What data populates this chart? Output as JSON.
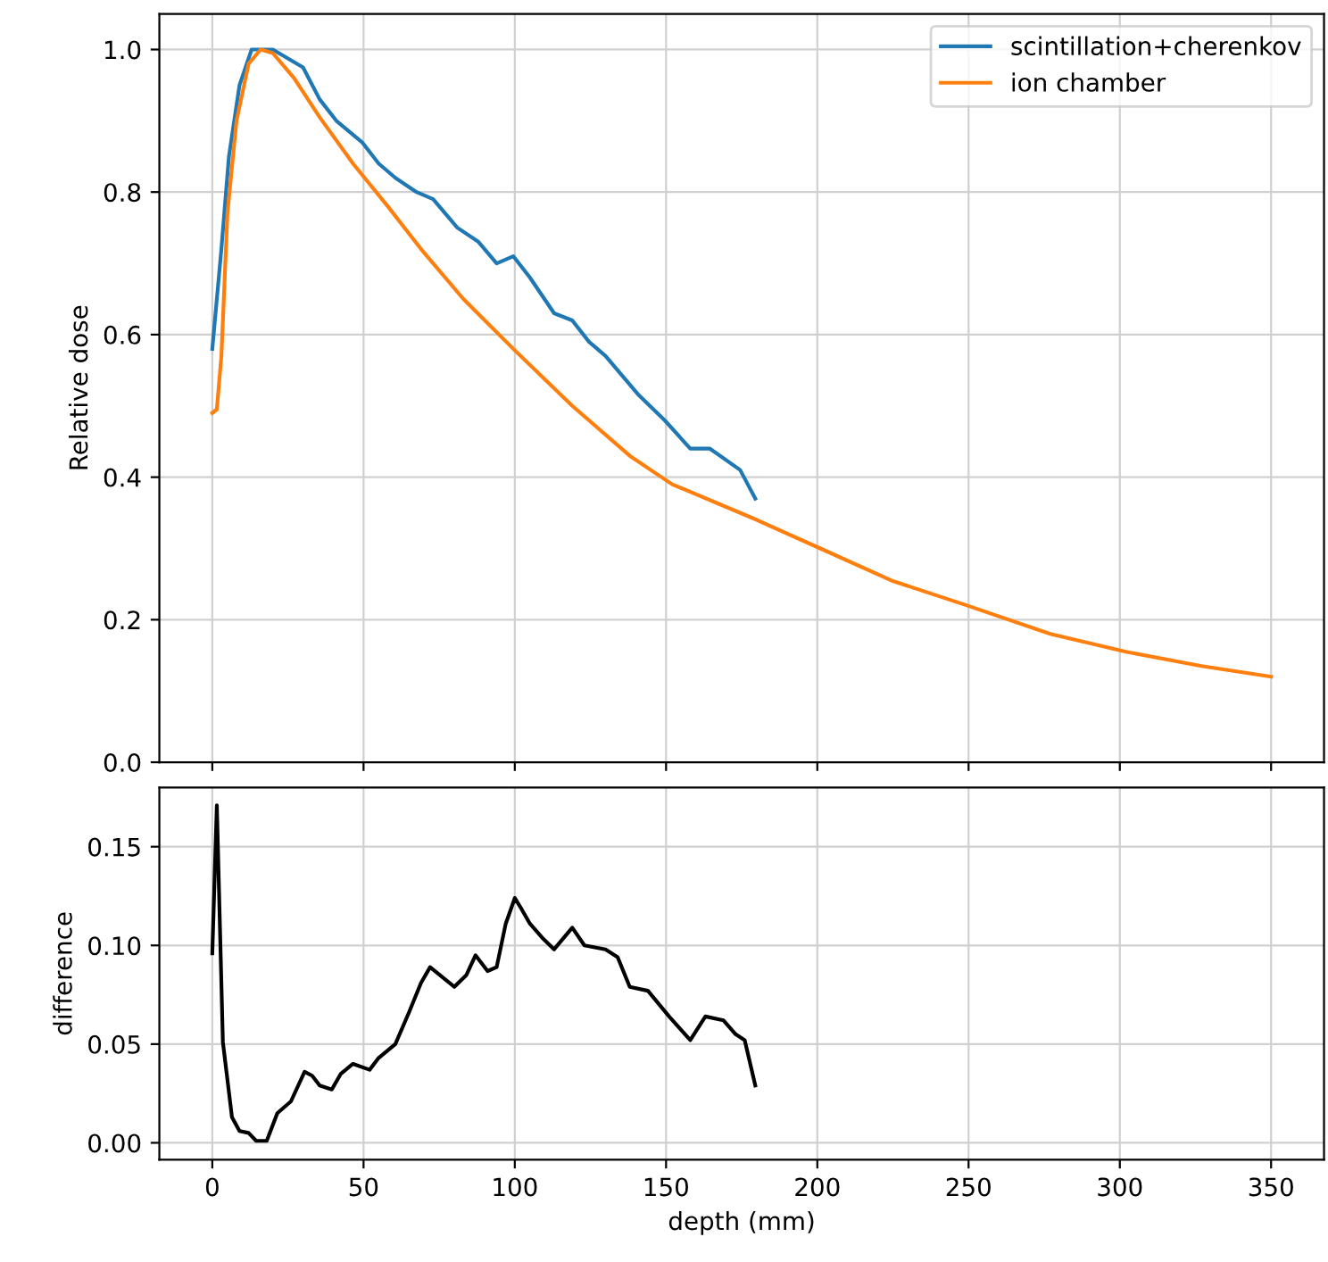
{
  "chart_data": [
    {
      "type": "line",
      "ylabel": "Relative dose",
      "xlim": [
        -17.5,
        367.5
      ],
      "ylim": [
        0,
        1.05
      ],
      "xticks": [
        0,
        50,
        100,
        150,
        200,
        250,
        300,
        350
      ],
      "yticks": [
        {
          "value": 0,
          "label": "0.0"
        },
        {
          "value": 0.2,
          "label": "0.2"
        },
        {
          "value": 0.4,
          "label": "0.4"
        },
        {
          "value": 0.6,
          "label": "0.6"
        },
        {
          "value": 0.8,
          "label": "0.8"
        },
        {
          "value": 1.0,
          "label": "1.0"
        }
      ],
      "tick_labels": "y",
      "grid": true,
      "legend": "top right",
      "series": [
        {
          "name": "scintillation+cherenkov",
          "color": "#1f77b4",
          "x": [
            0,
            3,
            5.5,
            9,
            13,
            20,
            26,
            30,
            35.5,
            41,
            49.5,
            55,
            60.5,
            67.5,
            73,
            81,
            88,
            94,
            99.5,
            105,
            113,
            119,
            124.5,
            130,
            141,
            149.5,
            158,
            164.5,
            174.5,
            177,
            179.5
          ],
          "values": [
            0.58,
            0.72,
            0.85,
            0.95,
            1.0,
            1.0,
            0.985,
            0.975,
            0.93,
            0.9,
            0.87,
            0.84,
            0.82,
            0.8,
            0.79,
            0.75,
            0.73,
            0.7,
            0.71,
            0.68,
            0.63,
            0.62,
            0.59,
            0.57,
            0.515,
            0.48,
            0.44,
            0.44,
            0.41,
            0.39,
            0.37
          ]
        },
        {
          "name": "ion chamber",
          "color": "#ff7f0e",
          "x": [
            0,
            1.5,
            3,
            5,
            8,
            12,
            16,
            20,
            27,
            35.5,
            46.5,
            58,
            69,
            83,
            99.5,
            119,
            138,
            152,
            180,
            201,
            224.5,
            249.5,
            277,
            302,
            327,
            350
          ],
          "values": [
            0.49,
            0.495,
            0.57,
            0.77,
            0.9,
            0.98,
            1.0,
            0.995,
            0.96,
            0.905,
            0.84,
            0.78,
            0.72,
            0.65,
            0.58,
            0.5,
            0.43,
            0.39,
            0.34,
            0.3,
            0.255,
            0.22,
            0.18,
            0.155,
            0.135,
            0.12
          ]
        }
      ]
    },
    {
      "type": "line",
      "xlabel": "depth (mm)",
      "ylabel": "difference",
      "xlim": [
        -17.5,
        367.5
      ],
      "ylim": [
        -0.0086,
        0.18
      ],
      "xticks": [
        0,
        50,
        100,
        150,
        200,
        250,
        300,
        350
      ],
      "yticks": [
        {
          "value": 0,
          "label": "0.00"
        },
        {
          "value": 0.05,
          "label": "0.05"
        },
        {
          "value": 0.1,
          "label": "0.10"
        },
        {
          "value": 0.15,
          "label": "0.15"
        }
      ],
      "grid": true,
      "series": [
        {
          "color": "#000000",
          "x": [
            0,
            1.5,
            3.5,
            6.5,
            9,
            12,
            14.5,
            18,
            21.5,
            26,
            30.5,
            33,
            35.5,
            39.5,
            42.5,
            46.5,
            52,
            55,
            60.5,
            65,
            69,
            72,
            80,
            84,
            87,
            91,
            94,
            97,
            100,
            102,
            105,
            109,
            113,
            119,
            123,
            130,
            134,
            138,
            144,
            151,
            158,
            163,
            169,
            173,
            176,
            179.5
          ],
          "values": [
            0.096,
            0.171,
            0.051,
            0.013,
            0.006,
            0.005,
            0.001,
            0.001,
            0.015,
            0.021,
            0.036,
            0.034,
            0.029,
            0.027,
            0.035,
            0.04,
            0.037,
            0.043,
            0.05,
            0.066,
            0.081,
            0.089,
            0.079,
            0.085,
            0.095,
            0.087,
            0.089,
            0.111,
            0.124,
            0.119,
            0.111,
            0.104,
            0.098,
            0.109,
            0.1,
            0.098,
            0.094,
            0.079,
            0.077,
            0.064,
            0.052,
            0.064,
            0.062,
            0.055,
            0.052,
            0.029
          ]
        }
      ]
    }
  ]
}
